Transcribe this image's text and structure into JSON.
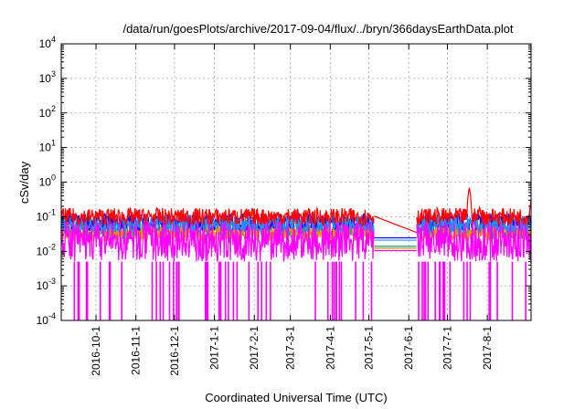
{
  "chart_data": {
    "type": "line",
    "title": "/data/run/goesPlots/archive/2017-09-04/flux/../bryn/366daysEarthData.plot",
    "xlabel": "Coordinated Universal Time (UTC)",
    "ylabel": "cSv/day",
    "yscale": "log",
    "ylim": [
      0.0001,
      10000
    ],
    "xlim": [
      "2016-09-04",
      "2017-09-04"
    ],
    "y_ticks": [
      {
        "base": "10",
        "exp": "-4",
        "value": 0.0001
      },
      {
        "base": "10",
        "exp": "-3",
        "value": 0.001
      },
      {
        "base": "10",
        "exp": "-2",
        "value": 0.01
      },
      {
        "base": "10",
        "exp": "-1",
        "value": 0.1
      },
      {
        "base": "10",
        "exp": "0",
        "value": 1
      },
      {
        "base": "10",
        "exp": "1",
        "value": 10
      },
      {
        "base": "10",
        "exp": "2",
        "value": 100
      },
      {
        "base": "10",
        "exp": "3",
        "value": 1000
      },
      {
        "base": "10",
        "exp": "4",
        "value": 10000
      }
    ],
    "x_ticks": [
      "2016-10-1",
      "2016-11-1",
      "2016-12-1",
      "2017-1-1",
      "2017-2-1",
      "2017-3-1",
      "2017-4-1",
      "2017-5-1",
      "2017-6-1",
      "2017-7-1",
      "2017-8-1"
    ],
    "grid": true,
    "data_gap": [
      "2017-05-05",
      "2017-06-07"
    ],
    "series": [
      {
        "color": "#ff0000",
        "baseline": 0.1,
        "peaks": [
          {
            "x": "2017-07-18",
            "y": 0.7
          },
          {
            "x": "2017-07-26",
            "y": 0.2
          },
          {
            "x": "2017-09-04",
            "y": 0.3
          }
        ]
      },
      {
        "color": "#0000ff",
        "baseline": 0.07
      },
      {
        "color": "#1e90ff",
        "baseline": 0.06
      },
      {
        "color": "#00aa88",
        "baseline": 0.04
      },
      {
        "color": "#ff8c00",
        "baseline": 0.035
      },
      {
        "color": "#ff00ff",
        "baseline": 0.03,
        "floor": 0.005,
        "dropouts_to": 0.0001
      }
    ]
  }
}
